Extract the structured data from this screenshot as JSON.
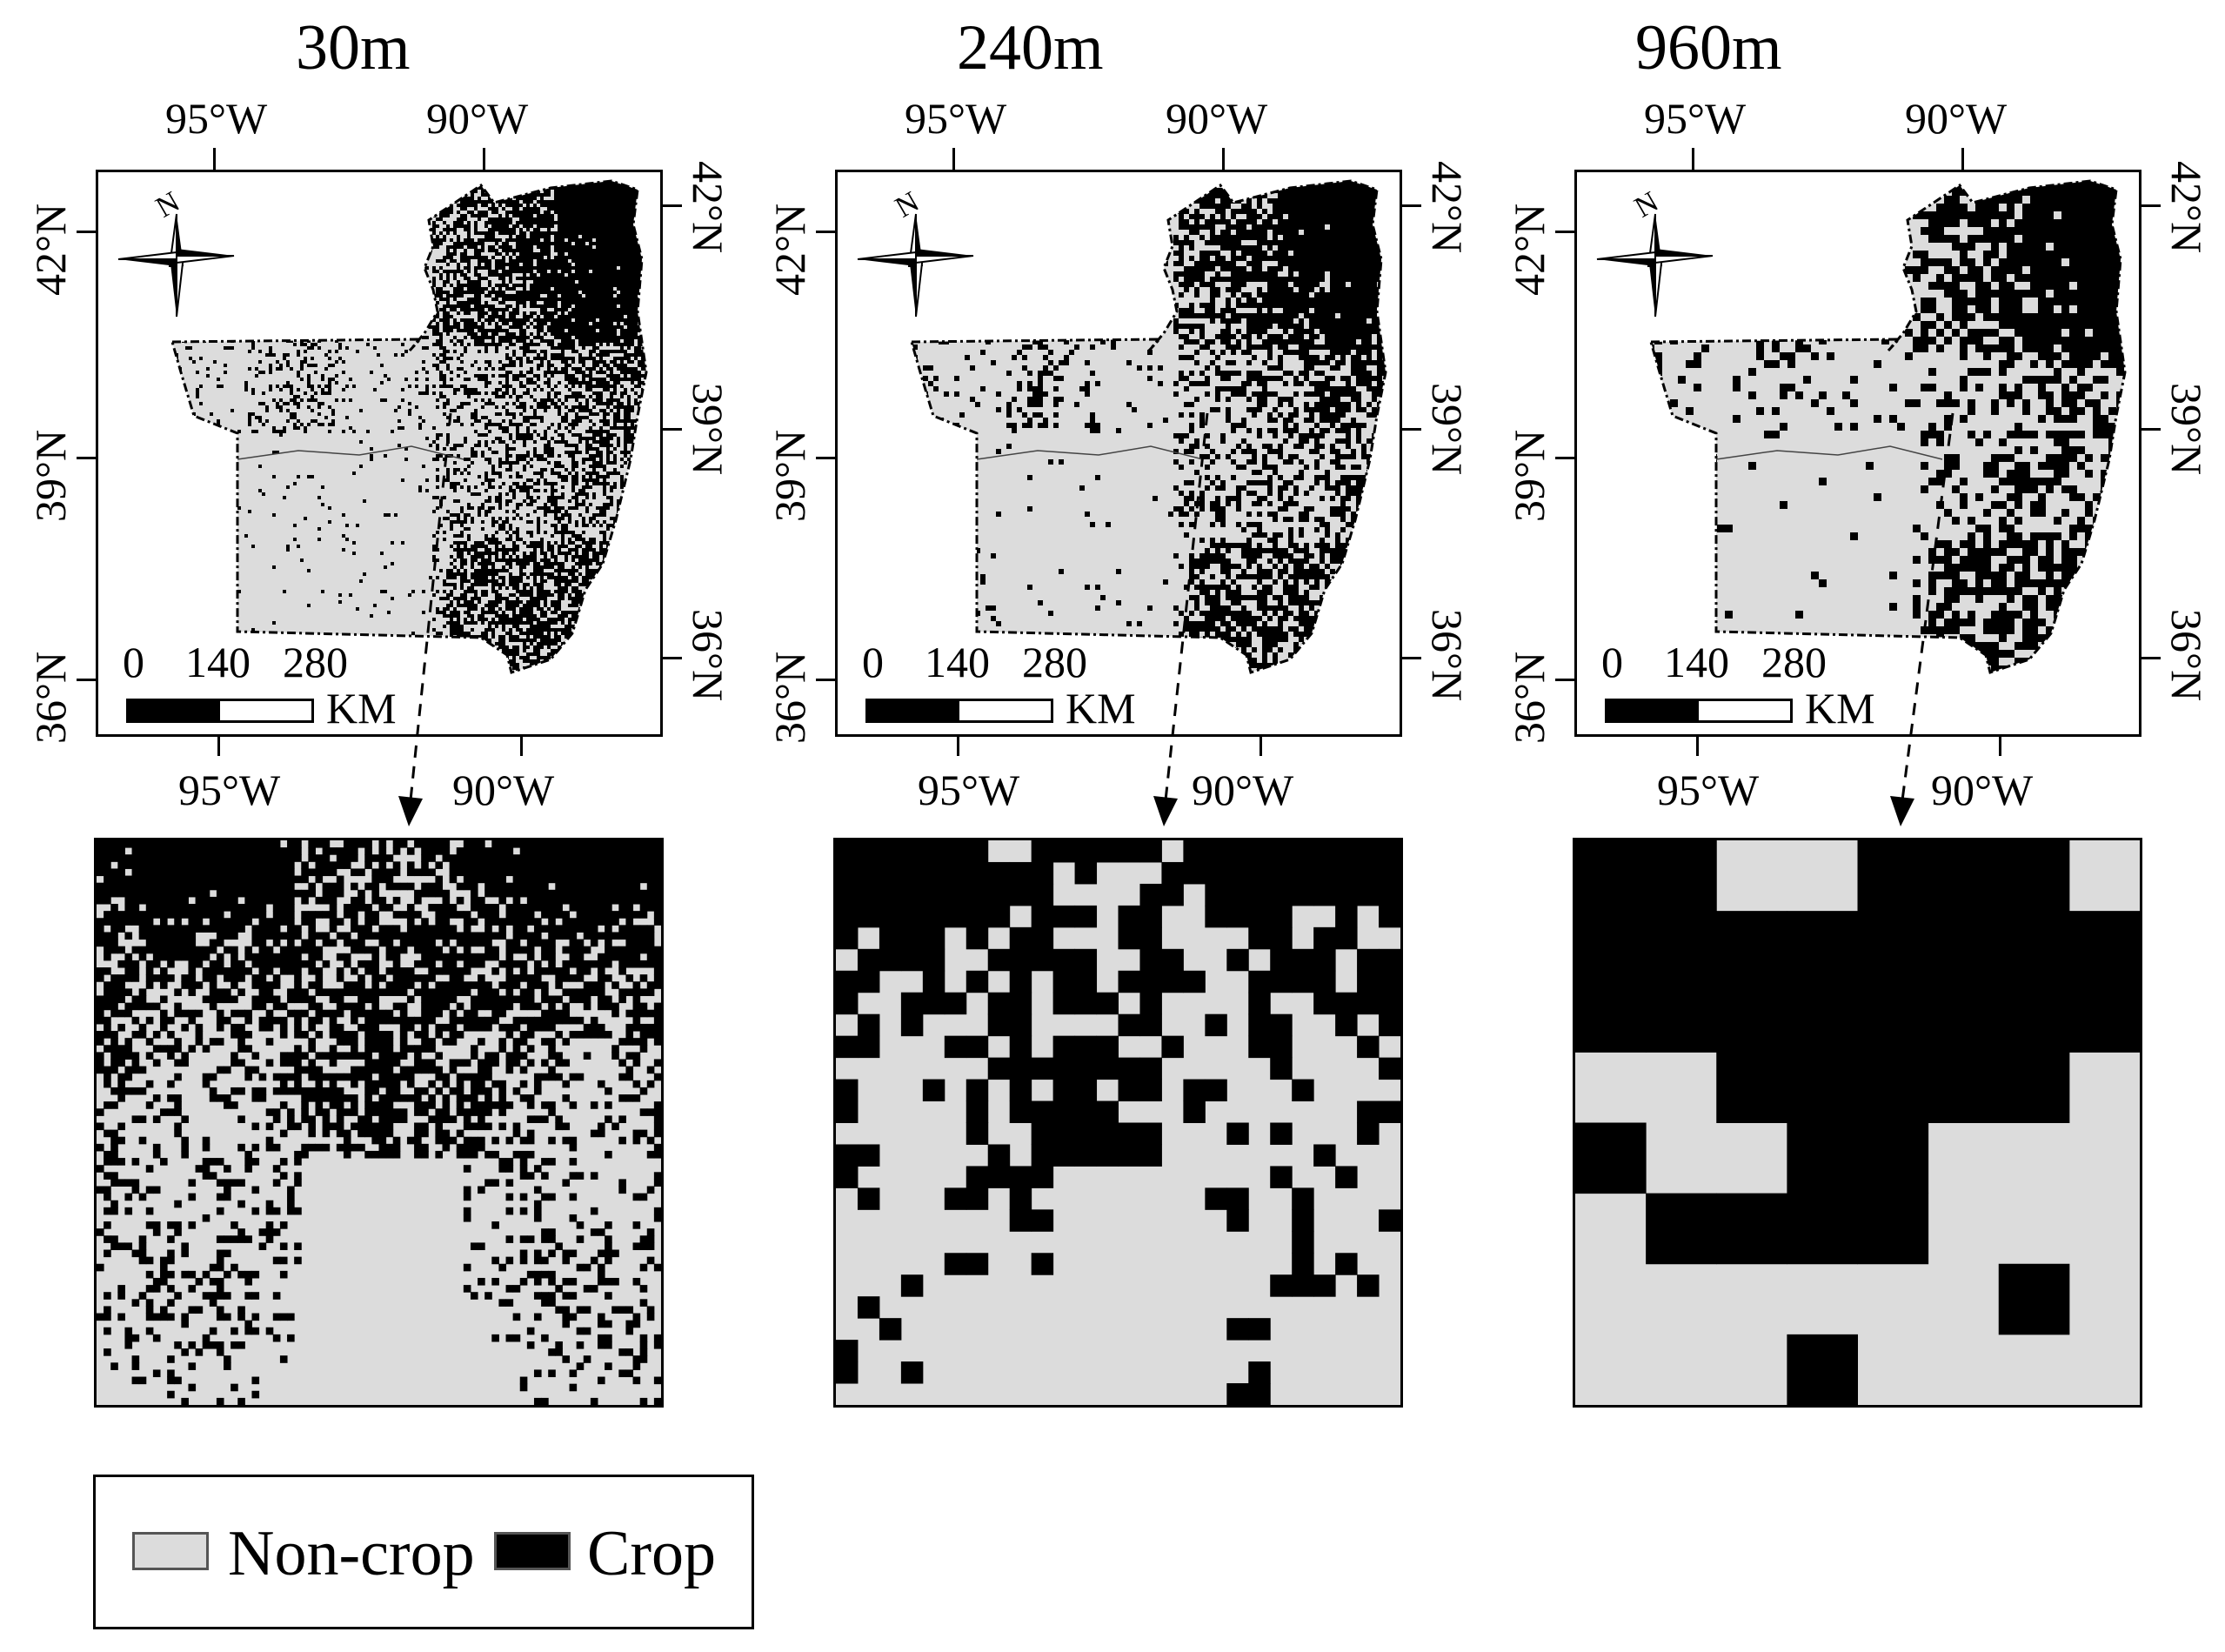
{
  "colors": {
    "crop": "#000000",
    "non_crop": "#dcdcdc",
    "frame": "#000000"
  },
  "panels": [
    {
      "resolution": "30m",
      "lon_top": [
        "95°W",
        "90°W"
      ],
      "lon_bottom": [
        "95°W",
        "90°W"
      ],
      "lat_left": [
        "42°N",
        "39°N",
        "36°N"
      ],
      "lat_right": [
        "42°N",
        "39°N",
        "36°N"
      ],
      "scale_labels": [
        "0",
        "140",
        "280"
      ],
      "scale_unit": "KM",
      "north_label": "N"
    },
    {
      "resolution": "240m",
      "lon_top": [
        "95°W",
        "90°W"
      ],
      "lon_bottom": [
        "95°W",
        "90°W"
      ],
      "lat_left": [
        "42°N",
        "39°N",
        "36°N"
      ],
      "lat_right": [
        "42°N",
        "39°N",
        "36°N"
      ],
      "scale_labels": [
        "0",
        "140",
        "280"
      ],
      "scale_unit": "KM",
      "north_label": "N"
    },
    {
      "resolution": "960m",
      "lon_top": [
        "95°W",
        "90°W"
      ],
      "lon_bottom": [
        "95°W",
        "90°W"
      ],
      "lat_left": [
        "42°N",
        "39°N",
        "36°N"
      ],
      "lat_right": [
        "42°N",
        "39°N",
        "36°N"
      ],
      "scale_labels": [
        "0",
        "140",
        "280"
      ],
      "scale_unit": "KM",
      "north_label": "N"
    }
  ],
  "legend": {
    "items": [
      {
        "label": "Non-crop",
        "class": "non_crop"
      },
      {
        "label": "Crop",
        "class": "crop"
      }
    ]
  }
}
